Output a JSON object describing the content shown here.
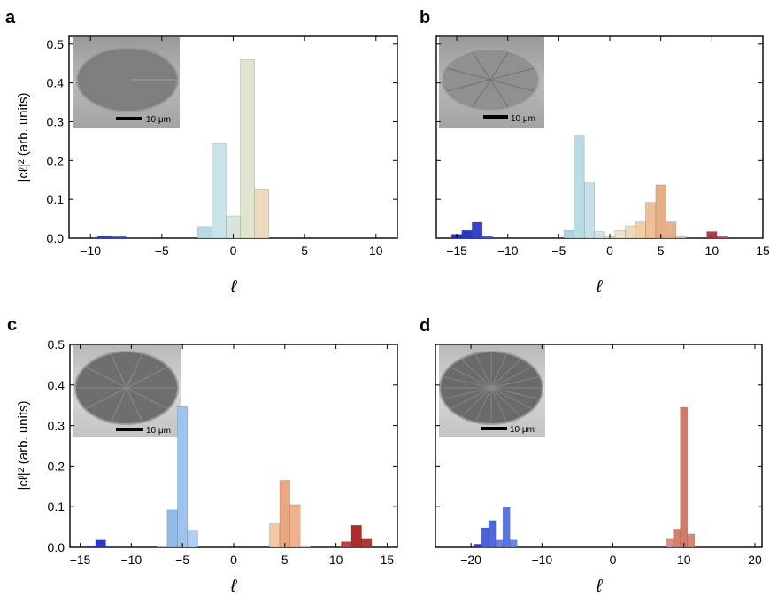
{
  "chart_data": [
    {
      "type": "bar",
      "panel_label": "a",
      "xlabel": "ℓ",
      "ylabel": "|cℓ|² (arb. units)",
      "xlim": [
        -11.5,
        11.5
      ],
      "ylim": [
        0,
        0.52
      ],
      "xticks": [
        -10,
        -5,
        0,
        5,
        10
      ],
      "xtick_labels": [
        "−10",
        "−5",
        "0",
        "5",
        "10"
      ],
      "yticks": [
        0.0,
        0.1,
        0.2,
        0.3,
        0.4,
        0.5
      ],
      "ytick_labels": [
        "0.0",
        "0.1",
        "0.2",
        "0.3",
        "0.4",
        "0.5"
      ],
      "show_y_tick_labels": true,
      "bars": [
        {
          "x": -9,
          "y": 0.006,
          "color": "#2f3fc9"
        },
        {
          "x": -8,
          "y": 0.004,
          "color": "#3a4fd2"
        },
        {
          "x": -2,
          "y": 0.03,
          "color": "#b7dae6"
        },
        {
          "x": -1,
          "y": 0.243,
          "color": "#c8e2e8"
        },
        {
          "x": 0,
          "y": 0.057,
          "color": "#d9e4df"
        },
        {
          "x": 1,
          "y": 0.46,
          "color": "#e0e3cd"
        },
        {
          "x": 2,
          "y": 0.127,
          "color": "#ebdcc0"
        }
      ],
      "inset": {
        "scale_bar_label": "10 μm",
        "pattern": "plain"
      }
    },
    {
      "type": "bar",
      "panel_label": "b",
      "xlabel": "ℓ",
      "ylabel": "",
      "xlim": [
        -17,
        15
      ],
      "ylim": [
        0,
        0.52
      ],
      "xticks": [
        -15,
        -10,
        -5,
        0,
        5,
        10,
        15
      ],
      "xtick_labels": [
        "−15",
        "−10",
        "−5",
        "0",
        "5",
        "10",
        "15"
      ],
      "yticks": [
        0.0,
        0.1,
        0.2,
        0.3,
        0.4,
        0.5
      ],
      "ytick_labels": [],
      "show_y_tick_labels": false,
      "bars": [
        {
          "x": -15,
          "y": 0.01,
          "color": "#2030c0"
        },
        {
          "x": -14,
          "y": 0.02,
          "color": "#2a3ac6"
        },
        {
          "x": -13,
          "y": 0.041,
          "color": "#3444cc"
        },
        {
          "x": -12,
          "y": 0.006,
          "color": "#4a5ad6"
        },
        {
          "x": -4,
          "y": 0.02,
          "color": "#aad4e2"
        },
        {
          "x": -3,
          "y": 0.265,
          "color": "#b8dbe4"
        },
        {
          "x": -2,
          "y": 0.145,
          "color": "#c4e0e6"
        },
        {
          "x": -1,
          "y": 0.017,
          "color": "#d4e4e0"
        },
        {
          "x": 0,
          "y": 0.004,
          "color": "#e0e6d8"
        },
        {
          "x": 1,
          "y": 0.02,
          "color": "#ebe4cc"
        },
        {
          "x": 2,
          "y": 0.032,
          "color": "#eedcb8"
        },
        {
          "x": 3,
          "y": 0.042,
          "color": "#f0cfa6"
        },
        {
          "x": 4,
          "y": 0.092,
          "color": "#efc096"
        },
        {
          "x": 5,
          "y": 0.137,
          "color": "#e8ad84"
        },
        {
          "x": 6,
          "y": 0.042,
          "color": "#e8b288"
        },
        {
          "x": 7,
          "y": 0.004,
          "color": "#e8c4a8"
        },
        {
          "x": 10,
          "y": 0.017,
          "color": "#b83a3a"
        },
        {
          "x": 11,
          "y": 0.004,
          "color": "#c85050"
        }
      ],
      "inset": {
        "scale_bar_label": "10 μm",
        "pattern": "spokes-8"
      }
    },
    {
      "type": "bar",
      "panel_label": "c",
      "xlabel": "ℓ",
      "ylabel": "|cℓ|² (arb. units)",
      "xlim": [
        -16,
        16
      ],
      "ylim": [
        0,
        0.5
      ],
      "xticks": [
        -15,
        -10,
        -5,
        0,
        5,
        10,
        15
      ],
      "xtick_labels": [
        "−15",
        "−10",
        "−5",
        "0",
        "5",
        "10",
        "15"
      ],
      "yticks": [
        0.0,
        0.1,
        0.2,
        0.3,
        0.4,
        0.5
      ],
      "ytick_labels": [
        "0.0",
        "0.1",
        "0.2",
        "0.3",
        "0.4",
        "0.5"
      ],
      "show_y_tick_labels": true,
      "bars": [
        {
          "x": -14,
          "y": 0.004,
          "color": "#3040c8"
        },
        {
          "x": -13,
          "y": 0.018,
          "color": "#2a3ac4"
        },
        {
          "x": -12,
          "y": 0.004,
          "color": "#3848cc"
        },
        {
          "x": -7,
          "y": 0.004,
          "color": "#a8c8ee"
        },
        {
          "x": -6,
          "y": 0.092,
          "color": "#92bbea"
        },
        {
          "x": -5,
          "y": 0.347,
          "color": "#9ec4ee"
        },
        {
          "x": -4,
          "y": 0.043,
          "color": "#b0d0f0"
        },
        {
          "x": 4,
          "y": 0.058,
          "color": "#f0c8a4"
        },
        {
          "x": 5,
          "y": 0.165,
          "color": "#e8a882"
        },
        {
          "x": 6,
          "y": 0.105,
          "color": "#eeb28e"
        },
        {
          "x": 7,
          "y": 0.004,
          "color": "#f0c4a8"
        },
        {
          "x": 11,
          "y": 0.014,
          "color": "#c04040"
        },
        {
          "x": 12,
          "y": 0.054,
          "color": "#b02a2a"
        },
        {
          "x": 13,
          "y": 0.02,
          "color": "#b83434"
        }
      ],
      "inset": {
        "scale_bar_label": "10 μm",
        "pattern": "spokes-10"
      }
    },
    {
      "type": "bar",
      "panel_label": "d",
      "xlabel": "ℓ",
      "ylabel": "",
      "xlim": [
        -25,
        21
      ],
      "ylim": [
        0,
        0.5
      ],
      "xticks": [
        -20,
        -10,
        0,
        10,
        20
      ],
      "xtick_labels": [
        "−20",
        "−10",
        "0",
        "10",
        "20"
      ],
      "yticks": [
        0.0,
        0.1,
        0.2,
        0.3,
        0.4,
        0.5
      ],
      "ytick_labels": [],
      "show_y_tick_labels": false,
      "bars": [
        {
          "x": -19,
          "y": 0.008,
          "color": "#2a3ccc"
        },
        {
          "x": -18,
          "y": 0.048,
          "color": "#4a60dc"
        },
        {
          "x": -17,
          "y": 0.066,
          "color": "#4e66de"
        },
        {
          "x": -16,
          "y": 0.018,
          "color": "#6a80e4"
        },
        {
          "x": -15,
          "y": 0.1,
          "color": "#5a74e4"
        },
        {
          "x": -14,
          "y": 0.018,
          "color": "#6c86e8"
        },
        {
          "x": 8,
          "y": 0.02,
          "color": "#e09080"
        },
        {
          "x": 9,
          "y": 0.045,
          "color": "#d8806e"
        },
        {
          "x": 10,
          "y": 0.345,
          "color": "#d47a66"
        },
        {
          "x": 11,
          "y": 0.033,
          "color": "#da8672"
        }
      ],
      "inset": {
        "scale_bar_label": "10 μm",
        "pattern": "spokes-20"
      }
    }
  ]
}
